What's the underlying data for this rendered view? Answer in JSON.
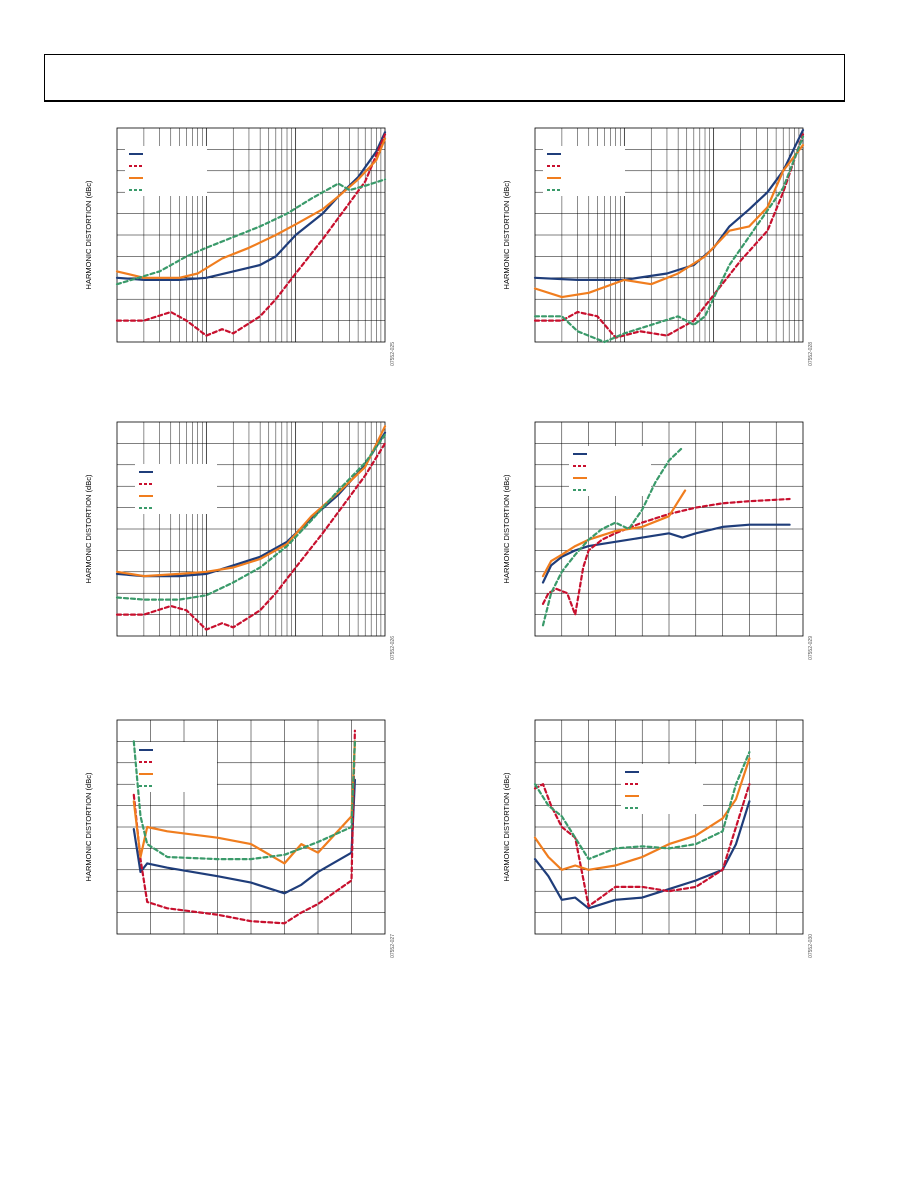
{
  "page": {
    "header_box": "",
    "charts_note": "six harmonic distortion plots"
  },
  "colors": {
    "navy": "#1f3d7a",
    "red": "#c8102e",
    "orange": "#f07d1e",
    "green": "#3a9a6a",
    "grid": "#000000"
  },
  "chart_data": [
    {
      "id": "top-left",
      "type": "line",
      "xscale": "log",
      "ylabel": "HARMONIC DISTORTION (dBc)",
      "fig_id": "07552-025",
      "xlim": [
        0.1,
        100
      ],
      "ylim": [
        -100,
        0
      ],
      "legend": "top-left",
      "series": [
        {
          "color": "navy",
          "dash": false,
          "x": [
            0.1,
            0.2,
            0.5,
            1,
            2,
            4,
            6,
            10,
            20,
            30,
            50,
            80,
            100
          ],
          "y": [
            -70,
            -71,
            -71,
            -70,
            -67,
            -64,
            -60,
            -50,
            -40,
            -32,
            -23,
            -11,
            -2
          ]
        },
        {
          "color": "red",
          "dash": true,
          "x": [
            0.1,
            0.2,
            0.4,
            0.6,
            1,
            1.5,
            2,
            4,
            6,
            10,
            20,
            40,
            60,
            100
          ],
          "y": [
            -90,
            -90,
            -86,
            -90,
            -97,
            -94,
            -96,
            -88,
            -80,
            -68,
            -52,
            -35,
            -25,
            -3
          ]
        },
        {
          "color": "orange",
          "dash": false,
          "x": [
            0.1,
            0.2,
            0.5,
            0.8,
            1.5,
            3,
            6,
            10,
            20,
            30,
            50,
            80,
            100
          ],
          "y": [
            -67,
            -70,
            -70,
            -68,
            -61,
            -56,
            -50,
            -45,
            -38,
            -32,
            -24,
            -15,
            -5
          ]
        },
        {
          "color": "green",
          "dash": true,
          "x": [
            0.1,
            0.3,
            0.6,
            1,
            2,
            4,
            8,
            15,
            30,
            40,
            60,
            100
          ],
          "y": [
            -73,
            -67,
            -60,
            -56,
            -51,
            -46,
            -40,
            -33,
            -26,
            -29,
            -27,
            -24
          ]
        }
      ]
    },
    {
      "id": "top-right",
      "type": "line",
      "xscale": "log",
      "ylabel": "HARMONIC DISTORTION (dBc)",
      "fig_id": "07552-028",
      "xlim": [
        0.1,
        100
      ],
      "ylim": [
        -100,
        0
      ],
      "legend": "top-left",
      "series": [
        {
          "color": "navy",
          "dash": false,
          "x": [
            0.1,
            0.3,
            1,
            3,
            6,
            10,
            15,
            25,
            40,
            60,
            100
          ],
          "y": [
            -70,
            -71,
            -71,
            -68,
            -64,
            -56,
            -46,
            -38,
            -30,
            -20,
            -1
          ]
        },
        {
          "color": "red",
          "dash": true,
          "x": [
            0.1,
            0.2,
            0.3,
            0.5,
            0.8,
            1.5,
            3,
            6,
            10,
            20,
            40,
            60,
            100
          ],
          "y": [
            -90,
            -90,
            -86,
            -88,
            -98,
            -95,
            -97,
            -90,
            -78,
            -62,
            -48,
            -30,
            -3
          ]
        },
        {
          "color": "orange",
          "dash": false,
          "x": [
            0.1,
            0.2,
            0.4,
            1,
            2,
            4,
            8,
            15,
            25,
            40,
            60,
            100
          ],
          "y": [
            -75,
            -79,
            -77,
            -71,
            -73,
            -68,
            -60,
            -48,
            -46,
            -37,
            -20,
            -8
          ]
        },
        {
          "color": "green",
          "dash": true,
          "x": [
            0.1,
            0.2,
            0.3,
            0.6,
            1,
            2,
            4,
            6,
            8,
            15,
            30,
            60,
            100
          ],
          "y": [
            -88,
            -88,
            -95,
            -100,
            -96,
            -92,
            -88,
            -92,
            -88,
            -64,
            -46,
            -28,
            -4
          ]
        }
      ]
    },
    {
      "id": "mid-left",
      "type": "line",
      "xscale": "log",
      "ylabel": "HARMONIC DISTORTION (dBc)",
      "fig_id": "07552-026",
      "xlim": [
        0.1,
        100
      ],
      "ylim": [
        -100,
        0
      ],
      "legend": "top-left",
      "series": [
        {
          "color": "navy",
          "dash": false,
          "x": [
            0.1,
            0.2,
            0.5,
            1,
            2,
            4,
            8,
            15,
            30,
            60,
            100
          ],
          "y": [
            -71,
            -72,
            -72,
            -71,
            -67,
            -63,
            -56,
            -45,
            -34,
            -20,
            -5
          ]
        },
        {
          "color": "red",
          "dash": true,
          "x": [
            0.1,
            0.2,
            0.4,
            0.6,
            1,
            1.5,
            2,
            4,
            6,
            10,
            20,
            40,
            60,
            100
          ],
          "y": [
            -90,
            -90,
            -86,
            -88,
            -97,
            -94,
            -96,
            -88,
            -80,
            -68,
            -52,
            -35,
            -25,
            -10
          ]
        },
        {
          "color": "orange",
          "dash": false,
          "x": [
            0.1,
            0.2,
            0.5,
            1,
            2,
            4,
            8,
            15,
            30,
            60,
            100
          ],
          "y": [
            -70,
            -72,
            -71,
            -70,
            -68,
            -64,
            -57,
            -44,
            -33,
            -21,
            -2
          ]
        },
        {
          "color": "green",
          "dash": true,
          "x": [
            0.1,
            0.2,
            0.5,
            1,
            2,
            4,
            8,
            15,
            30,
            60,
            100
          ],
          "y": [
            -82,
            -83,
            -83,
            -81,
            -75,
            -68,
            -58,
            -46,
            -32,
            -19,
            -6
          ]
        }
      ]
    },
    {
      "id": "mid-right",
      "type": "line",
      "xscale": "linear",
      "ylabel": "HARMONIC DISTORTION (dBc)",
      "fig_id": "07552-029",
      "xlim": [
        0,
        100
      ],
      "ylim": [
        -100,
        0
      ],
      "legend": "top-left",
      "series": [
        {
          "color": "navy",
          "dash": false,
          "x": [
            3,
            6,
            10,
            15,
            20,
            30,
            40,
            50,
            55,
            60,
            70,
            80,
            90,
            95
          ],
          "y": [
            -75,
            -67,
            -63,
            -60,
            -58,
            -56,
            -54,
            -52,
            -54,
            -52,
            -49,
            -48,
            -48,
            -48
          ]
        },
        {
          "color": "red",
          "dash": true,
          "x": [
            3,
            5,
            8,
            12,
            15,
            18,
            20,
            25,
            30,
            40,
            50,
            60,
            70,
            80,
            95
          ],
          "y": [
            -85,
            -80,
            -78,
            -80,
            -90,
            -68,
            -60,
            -55,
            -52,
            -47,
            -43,
            -40,
            -38,
            -37,
            -36
          ]
        },
        {
          "color": "orange",
          "dash": false,
          "x": [
            3,
            6,
            10,
            15,
            20,
            30,
            40,
            50,
            53,
            56
          ],
          "y": [
            -72,
            -65,
            -62,
            -58,
            -55,
            -51,
            -49,
            -44,
            -38,
            -32
          ]
        },
        {
          "color": "green",
          "dash": true,
          "x": [
            3,
            6,
            10,
            15,
            20,
            25,
            30,
            35,
            40,
            45,
            50,
            55
          ],
          "y": [
            -95,
            -80,
            -70,
            -62,
            -55,
            -50,
            -47,
            -50,
            -41,
            -28,
            -18,
            -12
          ]
        }
      ]
    },
    {
      "id": "bottom-left",
      "type": "line",
      "xscale": "linear",
      "ylabel": "HARMONIC DISTORTION (dBc)",
      "fig_id": "07552-027",
      "xlim": [
        0,
        8
      ],
      "ylim": [
        -100,
        0
      ],
      "legend": "top-left",
      "series": [
        {
          "color": "navy",
          "dash": false,
          "x": [
            0.5,
            0.7,
            0.9,
            1.5,
            3,
            4,
            5,
            5.5,
            6,
            7,
            7.1
          ],
          "y": [
            -51,
            -71,
            -67,
            -69,
            -73,
            -76,
            -81,
            -77,
            -71,
            -62,
            -28
          ]
        },
        {
          "color": "red",
          "dash": true,
          "x": [
            0.5,
            0.7,
            0.9,
            1.5,
            3,
            4,
            5,
            5.5,
            6,
            7,
            7.1
          ],
          "y": [
            -35,
            -65,
            -85,
            -88,
            -91,
            -94,
            -95,
            -90,
            -86,
            -75,
            -5
          ]
        },
        {
          "color": "orange",
          "dash": false,
          "x": [
            0.5,
            0.7,
            0.9,
            1.5,
            3,
            4,
            5,
            5.5,
            6,
            7,
            7.1
          ],
          "y": [
            -38,
            -64,
            -50,
            -52,
            -55,
            -58,
            -67,
            -58,
            -62,
            -45,
            -10
          ]
        },
        {
          "color": "green",
          "dash": true,
          "x": [
            0.5,
            0.7,
            0.9,
            1.5,
            3,
            4,
            5,
            5.5,
            6,
            7,
            7.1
          ],
          "y": [
            -10,
            -45,
            -58,
            -64,
            -65,
            -65,
            -63,
            -60,
            -57,
            -50,
            -10
          ]
        }
      ]
    },
    {
      "id": "bottom-right",
      "type": "line",
      "xscale": "linear",
      "ylabel": "HARMONIC DISTORTION (dBc)",
      "fig_id": "07552-030",
      "xlim": [
        0,
        100
      ],
      "ylim": [
        -100,
        0
      ],
      "legend": "top-center",
      "series": [
        {
          "color": "navy",
          "dash": false,
          "x": [
            0,
            5,
            10,
            15,
            20,
            30,
            40,
            50,
            60,
            70,
            75,
            80
          ],
          "y": [
            -65,
            -73,
            -84,
            -83,
            -88,
            -84,
            -83,
            -79,
            -75,
            -70,
            -58,
            -38
          ]
        },
        {
          "color": "red",
          "dash": true,
          "x": [
            0,
            3,
            6,
            10,
            15,
            20,
            30,
            40,
            50,
            60,
            70,
            80
          ],
          "y": [
            -32,
            -30,
            -40,
            -50,
            -55,
            -87,
            -78,
            -78,
            -80,
            -78,
            -70,
            -30
          ]
        },
        {
          "color": "orange",
          "dash": false,
          "x": [
            0,
            5,
            10,
            15,
            20,
            30,
            40,
            50,
            60,
            70,
            75,
            80
          ],
          "y": [
            -55,
            -64,
            -70,
            -68,
            -70,
            -68,
            -64,
            -58,
            -54,
            -46,
            -37,
            -18
          ]
        },
        {
          "color": "green",
          "dash": true,
          "x": [
            0,
            5,
            10,
            15,
            20,
            30,
            40,
            50,
            60,
            70,
            75,
            80
          ],
          "y": [
            -30,
            -40,
            -45,
            -55,
            -65,
            -60,
            -59,
            -60,
            -58,
            -52,
            -30,
            -15
          ]
        }
      ]
    }
  ]
}
